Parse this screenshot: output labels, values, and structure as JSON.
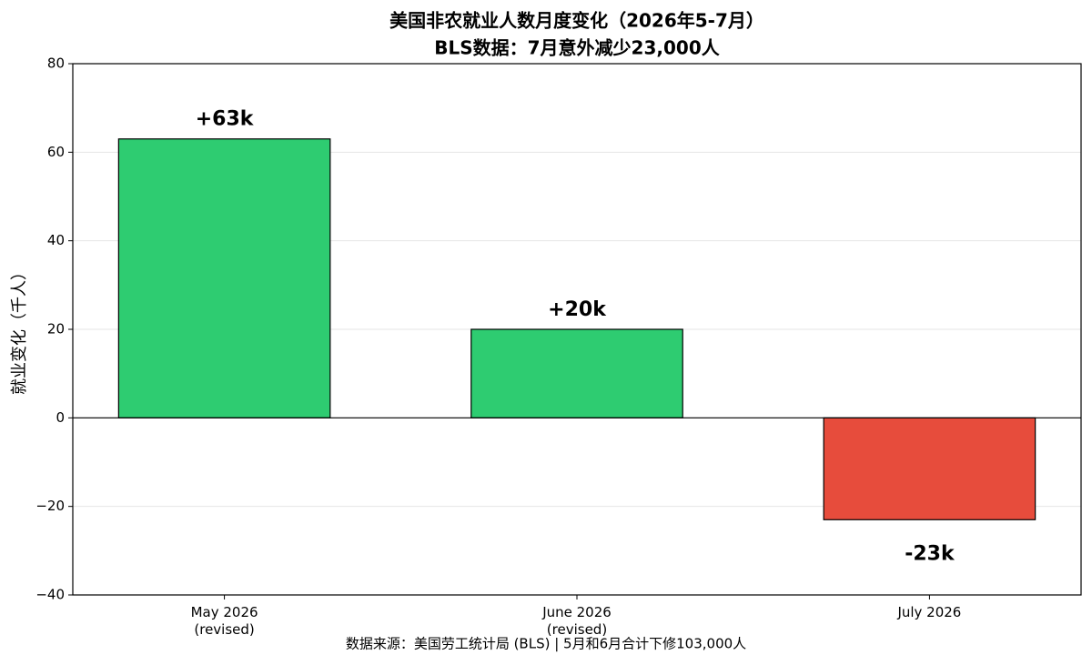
{
  "chart_data": {
    "type": "bar",
    "title": "美国非农就业人数月度变化（2026年5-7月）",
    "subtitle": "BLS数据：7月意外减少23,000人",
    "y_label": "就业变化（千人）",
    "note": "数据来源：美国劳工统计局 (BLS) | 5月和6月合计下修103,000人",
    "categories": [
      "May 2026\n(revised)",
      "June 2026\n(revised)",
      "July 2026"
    ],
    "values": [
      63,
      20,
      -23
    ],
    "value_labels": [
      "+63k",
      "+20k",
      "-23k"
    ],
    "colors": [
      "#2ecc71",
      "#2ecc71",
      "#e74c3c"
    ],
    "ylim": [
      -40,
      80
    ],
    "yticks": [
      {
        "value": -40,
        "label": "−40"
      },
      {
        "value": -20,
        "label": "−20"
      },
      0,
      20,
      40,
      60,
      80
    ],
    "grid": true
  }
}
